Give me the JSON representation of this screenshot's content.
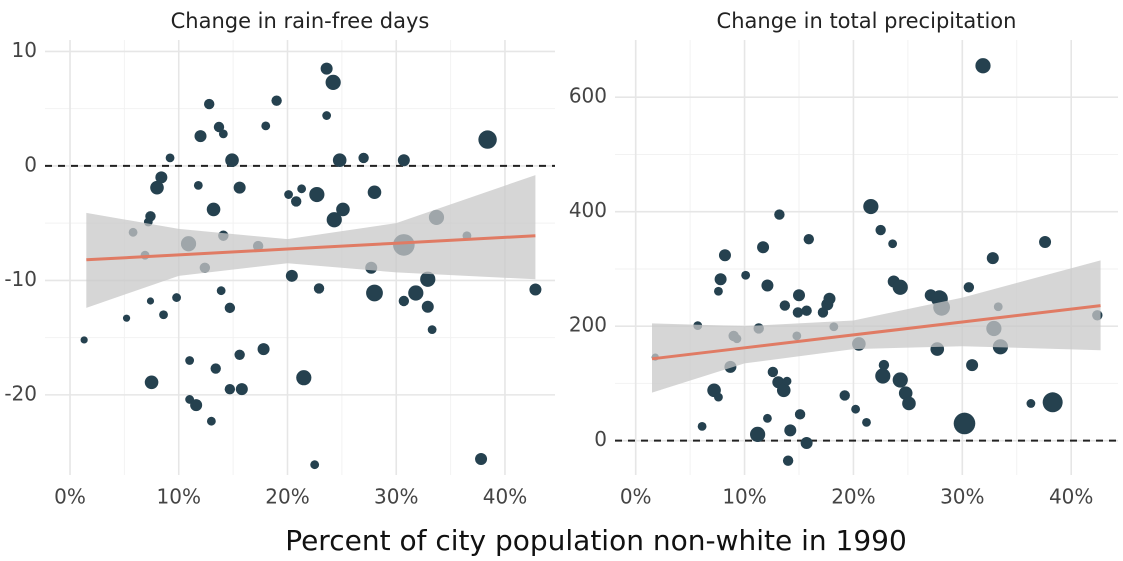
{
  "xlabel": "Percent of city population non-white in 1990",
  "chart_data": [
    {
      "type": "scatter",
      "title": "Change in rain-free days",
      "x": [
        1.3,
        5.2,
        5.8,
        6.9,
        7.2,
        7.4,
        7.4,
        7.5,
        8.0,
        8.4,
        8.6,
        9.2,
        9.8,
        10.9,
        11.0,
        11.0,
        11.6,
        11.8,
        12.0,
        12.4,
        12.8,
        13.0,
        13.2,
        13.4,
        13.7,
        14.1,
        13.9,
        14.1,
        14.7,
        14.7,
        14.9,
        15.6,
        15.6,
        15.8,
        17.3,
        17.8,
        18.0,
        19.0,
        20.1,
        20.4,
        20.8,
        21.3,
        21.5,
        22.5,
        22.7,
        22.9,
        23.6,
        23.6,
        24.2,
        24.3,
        24.8,
        25.1,
        27.0,
        27.7,
        28.0,
        28.0,
        30.7,
        30.7,
        30.7,
        31.8,
        32.9,
        32.9,
        33.3,
        33.7,
        36.5,
        37.8,
        38.4,
        42.8
      ],
      "y": [
        -15.2,
        -13.3,
        -5.8,
        -7.8,
        -4.9,
        -4.4,
        -11.8,
        -18.9,
        -1.9,
        -1.0,
        -13.0,
        0.7,
        -11.5,
        -6.8,
        -17.0,
        -20.4,
        -20.9,
        -1.7,
        2.6,
        -8.9,
        5.4,
        -22.3,
        -3.8,
        -17.7,
        3.4,
        2.8,
        -10.9,
        -6.1,
        -12.4,
        -19.5,
        0.5,
        -16.5,
        -1.9,
        -19.5,
        -7.0,
        -16.0,
        3.5,
        5.7,
        -2.5,
        -9.6,
        -3.1,
        -2.0,
        -18.5,
        -26.1,
        -2.5,
        -10.7,
        8.5,
        4.4,
        7.3,
        -4.7,
        0.5,
        -3.8,
        0.7,
        -8.9,
        -2.3,
        -11.1,
        -6.9,
        0.5,
        -11.8,
        -11.1,
        -9.9,
        -12.3,
        -14.3,
        -4.5,
        -6.1,
        -25.6,
        2.3,
        -10.8
      ],
      "sizes": [
        1,
        1,
        1.5,
        1.5,
        1.5,
        2,
        1,
        3,
        3,
        2.5,
        1.5,
        1.5,
        1.5,
        3.5,
        1.5,
        1.5,
        2.5,
        1.5,
        2.5,
        2,
        2,
        1.5,
        3,
        2,
        2,
        1.5,
        1.5,
        2,
        2,
        2,
        3,
        2,
        2.5,
        2.5,
        2,
        2.5,
        1.5,
        2,
        1.5,
        2.5,
        2,
        1.5,
        3.5,
        1.5,
        3.5,
        2,
        2.5,
        1.5,
        3.5,
        3.5,
        3,
        3,
        2,
        2.5,
        3,
        4,
        5.5,
        2.5,
        2,
        3.5,
        3.5,
        2.5,
        1.5,
        3.5,
        1.5,
        2.5,
        4.5,
        2.5
      ],
      "color": "#25414f",
      "fit": {
        "x": [
          1.5,
          10,
          20,
          30,
          42.8
        ],
        "y": [
          -8.2,
          -7.77,
          -7.26,
          -6.75,
          -6.1
        ],
        "lower": [
          -12.4,
          -9.6,
          -8.5,
          -9.3,
          -9.9
        ],
        "upper": [
          -4.1,
          -5.5,
          -6.4,
          -5.0,
          -0.8
        ],
        "color": "#e07b64",
        "band_color": "#c8c8c8"
      },
      "hline": 0,
      "xlim": [
        -2.3,
        44.6
      ],
      "ylim": [
        -27,
        11
      ],
      "xticks": [
        {
          "value": 0,
          "label": "0%"
        },
        {
          "value": 10,
          "label": "10%"
        },
        {
          "value": 20,
          "label": "20%"
        },
        {
          "value": 30,
          "label": "30%"
        },
        {
          "value": 40,
          "label": "40%"
        }
      ],
      "yticks": [
        -20,
        -10,
        0,
        10
      ],
      "grid": true
    },
    {
      "type": "scatter",
      "title": "Change in total precipitation",
      "x": [
        1.8,
        5.7,
        6.1,
        7.2,
        7.6,
        7.6,
        7.8,
        8.2,
        8.7,
        9.0,
        9.3,
        10.1,
        11.2,
        11.3,
        11.7,
        12.1,
        12.1,
        12.6,
        13.1,
        13.2,
        13.6,
        13.7,
        13.9,
        14.0,
        14.2,
        14.9,
        15.0,
        15.1,
        14.8,
        15.7,
        15.7,
        15.9,
        17.2,
        17.6,
        17.8,
        18.2,
        19.2,
        20.2,
        20.5,
        21.2,
        21.6,
        22.5,
        22.8,
        22.7,
        23.6,
        23.7,
        24.3,
        24.3,
        24.8,
        25.1,
        27.1,
        27.7,
        27.9,
        28.1,
        30.2,
        30.6,
        30.9,
        31.9,
        32.8,
        32.9,
        33.3,
        33.5,
        36.3,
        37.6,
        38.3,
        42.4
      ],
      "y": [
        146,
        201,
        25,
        88,
        76,
        261,
        282,
        324,
        129,
        183,
        178,
        289,
        11,
        196,
        338,
        271,
        39,
        120,
        102,
        395,
        88,
        236,
        104,
        -35,
        18,
        224,
        254,
        46,
        183,
        227,
        -4,
        352,
        224,
        238,
        248,
        199,
        79,
        55,
        169,
        32,
        409,
        368,
        132,
        113,
        344,
        278,
        268,
        106,
        83,
        65,
        254,
        160,
        248,
        233,
        30,
        268,
        132,
        655,
        319,
        196,
        234,
        164,
        65,
        347,
        67,
        219
      ],
      "sizes": [
        1,
        1.5,
        1.5,
        3,
        1.5,
        1.5,
        2.5,
        2.5,
        2.5,
        2,
        1.5,
        1.5,
        3.5,
        2,
        2.5,
        2.5,
        1.5,
        2,
        2.5,
        2,
        3,
        2,
        1.5,
        2,
        2.5,
        2,
        2.5,
        2,
        1.5,
        2,
        2.5,
        2,
        2,
        2.5,
        2.5,
        1.5,
        2,
        1.5,
        3,
        1.5,
        3.5,
        2,
        2,
        3.5,
        1.5,
        2.5,
        3.5,
        3.5,
        3,
        3,
        2.5,
        3,
        4,
        4,
        5.5,
        2,
        2.5,
        3.5,
        2.5,
        3.5,
        1.5,
        3.5,
        1.5,
        2.5,
        5,
        2
      ],
      "color": "#25414f",
      "fit": {
        "x": [
          1.5,
          10,
          20,
          30,
          42.7
        ],
        "y": [
          143,
          162.2,
          184.8,
          207.3,
          236
        ],
        "lower": [
          84,
          135,
          160,
          165,
          158
        ],
        "upper": [
          205,
          200,
          210,
          250,
          315
        ],
        "color": "#e07b64",
        "band_color": "#c8c8c8"
      },
      "hline": 0,
      "xlim": [
        -1.9,
        44.3
      ],
      "ylim": [
        -60,
        700
      ],
      "xticks": [
        {
          "value": 0,
          "label": "0%"
        },
        {
          "value": 10,
          "label": "10%"
        },
        {
          "value": 20,
          "label": "20%"
        },
        {
          "value": 30,
          "label": "30%"
        },
        {
          "value": 40,
          "label": "40%"
        }
      ],
      "yticks": [
        0,
        200,
        400,
        600
      ],
      "grid": true
    }
  ]
}
